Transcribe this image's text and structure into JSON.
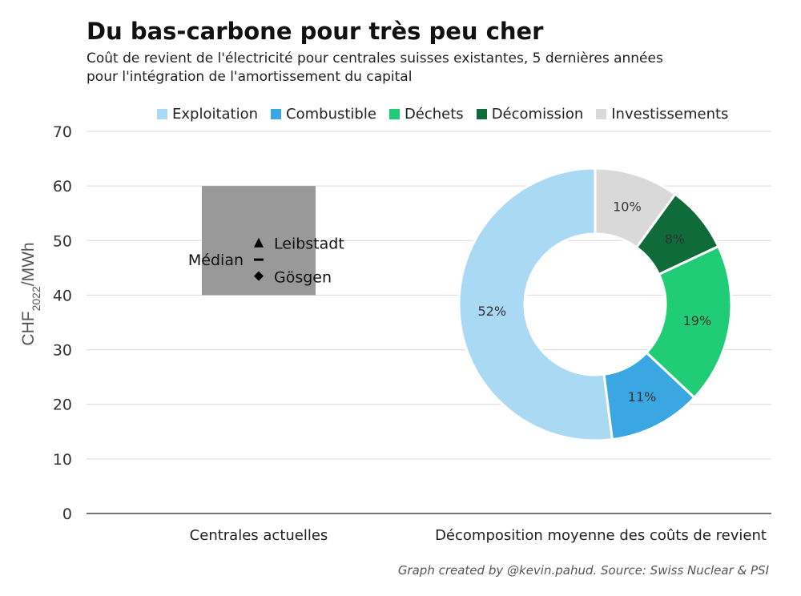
{
  "title": "Du bas-carbone pour très peu cher",
  "subtitle_line1": "Coût de revient de l'électricité pour centrales suisses existantes, 5 dernières années",
  "subtitle_line2": "pour l'intégration de l'amortissement du capital",
  "source": "Graph created by @kevin.pahud. Source: Swiss Nuclear & PSI",
  "legend": [
    {
      "label": "Exploitation",
      "color": "#a9d9f3"
    },
    {
      "label": "Combustible",
      "color": "#3aa7e2"
    },
    {
      "label": "Déchets",
      "color": "#20cc76"
    },
    {
      "label": "Décomission",
      "color": "#0f6b3a"
    },
    {
      "label": "Investissements",
      "color": "#d9d9d9"
    }
  ],
  "chart_data": {
    "type": "bar",
    "ylabel_main": "CHF",
    "ylabel_sub": "2022",
    "ylabel_tail": "/MWh",
    "ylim": [
      0,
      70
    ],
    "yticks": [
      0,
      10,
      20,
      30,
      40,
      50,
      60,
      70
    ],
    "categories": [
      "Centrales actuelles",
      "Décomposition moyenne des coûts de revient"
    ],
    "range_bar": {
      "low": 40,
      "high": 60,
      "color": "#999999"
    },
    "markers": [
      {
        "label": "Leibstadt",
        "value": 49.5,
        "shape": "triangle"
      },
      {
        "label": "Médian",
        "value": 46.5,
        "shape": "dash"
      },
      {
        "label": "Gösgen",
        "value": 43.5,
        "shape": "diamond"
      }
    ],
    "donut": {
      "type": "pie",
      "slices": [
        {
          "name": "Investissements",
          "value": 10,
          "label": "10%",
          "color": "#d9d9d9"
        },
        {
          "name": "Décomission",
          "value": 8,
          "label": "8%",
          "color": "#0f6b3a"
        },
        {
          "name": "Déchets",
          "value": 19,
          "label": "19%",
          "color": "#20cc76"
        },
        {
          "name": "Combustible",
          "value": 11,
          "label": "11%",
          "color": "#3aa7e2"
        },
        {
          "name": "Exploitation",
          "value": 52,
          "label": "52%",
          "color": "#a9d9f3"
        }
      ]
    }
  }
}
